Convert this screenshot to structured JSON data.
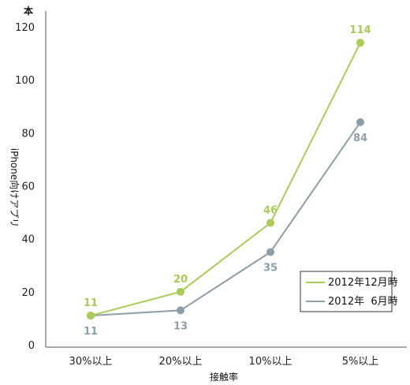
{
  "chart_data": {
    "type": "line",
    "categories": [
      "30%以上",
      "20%以上",
      "10%以上",
      "5%以上"
    ],
    "series": [
      {
        "name": "2012年12月時",
        "values": [
          11,
          20,
          46,
          114
        ],
        "color": "#a9cc56"
      },
      {
        "name": "2012年  6月時",
        "values": [
          11,
          13,
          35,
          84
        ],
        "color": "#8d9ea7"
      }
    ],
    "xlabel": "接触率",
    "ylabel": "iPhone向けアプリ",
    "unit_label": "本",
    "ylim": [
      0,
      120
    ],
    "yticks": [
      0,
      20,
      40,
      60,
      80,
      100,
      120
    ],
    "grid": false,
    "legend_position": "bottom-right"
  }
}
